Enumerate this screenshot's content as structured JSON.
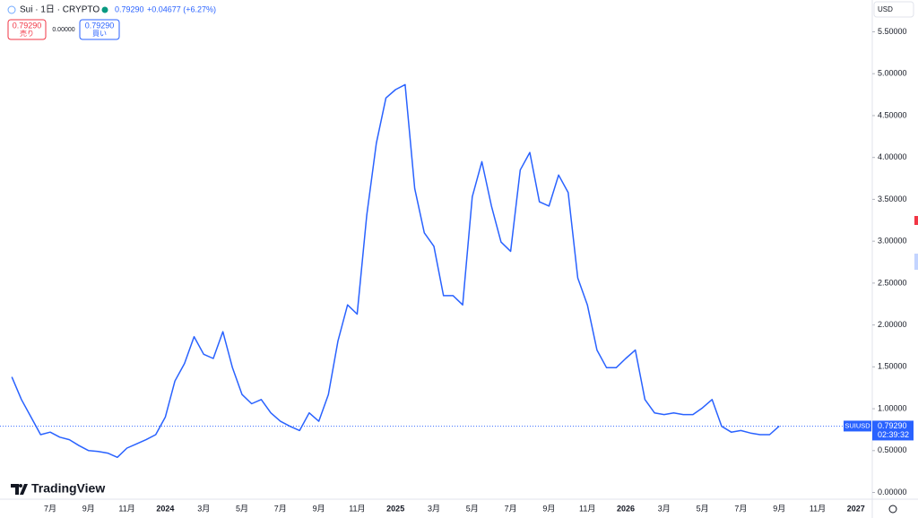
{
  "header": {
    "symbol": "Sui · 1日 · CRYPTO",
    "price": "0.79290",
    "change": "+0.04677 (+6.27%)"
  },
  "trade": {
    "sell_price": "0.79290",
    "sell_label": "売り",
    "spread": "0.00000",
    "buy_price": "0.79290",
    "buy_label": "買い"
  },
  "currency": "USD",
  "countdown": "02:39:32",
  "logo": "TradingView",
  "chart_data": {
    "type": "line",
    "categories": [
      null,
      null,
      null,
      null,
      "7月",
      null,
      null,
      null,
      "9月",
      null,
      null,
      null,
      "11月",
      null,
      null,
      null,
      "2024",
      null,
      null,
      null,
      "3月",
      null,
      null,
      null,
      "5月",
      null,
      null,
      null,
      "7月",
      null,
      null,
      null,
      "9月",
      null,
      null,
      null,
      "11月",
      null,
      null,
      null,
      "2025",
      null,
      null,
      null,
      "3月",
      null,
      null,
      null,
      "5月",
      null,
      null,
      null,
      "7月",
      null,
      null,
      null,
      "9月",
      null,
      null,
      null,
      "11月",
      null,
      null,
      null,
      "2026",
      null,
      null,
      null,
      "3月",
      null,
      null,
      null,
      "5月",
      null,
      null,
      null,
      "7月",
      null,
      null,
      null,
      "9月",
      null,
      null,
      null,
      "11月",
      null,
      null,
      null,
      "2027"
    ],
    "series": [
      {
        "name": "SUIUSD",
        "color": "#2962ff",
        "values": [
          1.38,
          1.11,
          0.9,
          0.69,
          0.72,
          0.66,
          0.63,
          0.56,
          0.5,
          0.49,
          0.47,
          0.42,
          0.53,
          0.58,
          0.63,
          0.69,
          0.9,
          1.33,
          1.54,
          1.86,
          1.65,
          1.6,
          1.92,
          1.49,
          1.17,
          1.06,
          1.11,
          0.95,
          0.85,
          0.79,
          0.74,
          0.95,
          0.85,
          1.17,
          1.81,
          2.24,
          2.13,
          3.31,
          4.17,
          4.71,
          4.81,
          4.87,
          3.63,
          3.1,
          2.94,
          2.35,
          2.35,
          2.24,
          3.53,
          3.95,
          3.42,
          2.99,
          2.88,
          3.85,
          4.06,
          3.47,
          3.42,
          3.79,
          3.58,
          2.56,
          2.24,
          1.7,
          1.49,
          1.49,
          1.6,
          1.7,
          1.11,
          0.95,
          0.93,
          0.95,
          0.93,
          0.93,
          1.01,
          1.11,
          0.79,
          0.72,
          0.74,
          0.71,
          0.69,
          0.69,
          0.7929,
          null,
          null,
          null,
          null,
          null,
          null,
          null,
          null
        ],
        "value_labels": [
          null,
          null,
          null,
          null,
          null,
          null,
          null,
          null,
          null,
          null,
          null,
          null,
          null,
          null,
          null,
          null,
          null,
          null,
          null,
          null,
          null,
          null,
          null,
          null,
          null,
          null,
          null,
          null,
          null,
          null,
          null,
          null,
          null,
          null,
          null,
          null,
          null,
          null,
          null,
          null,
          null,
          null,
          null,
          null,
          null,
          null,
          null,
          null,
          null,
          null,
          null,
          null,
          null,
          null,
          null,
          null,
          null,
          null,
          null,
          null,
          null,
          null,
          null,
          null,
          null,
          null,
          null,
          null,
          null,
          null,
          null,
          null,
          null,
          null,
          null,
          null,
          null,
          null,
          null,
          null,
          "0.79290",
          null,
          null,
          null,
          null,
          null,
          null,
          null,
          null
        ]
      }
    ],
    "ylim": [
      -0.08,
      5.88
    ],
    "yticks": [
      {
        "value": 0,
        "label": "0.00000"
      },
      {
        "value": 0.5,
        "label": "0.50000"
      },
      {
        "value": 1,
        "label": "1.00000"
      },
      {
        "value": 1.5,
        "label": "1.50000"
      },
      {
        "value": 2,
        "label": "2.00000"
      },
      {
        "value": 2.5,
        "label": "2.50000"
      },
      {
        "value": 3,
        "label": "3.00000"
      },
      {
        "value": 3.5,
        "label": "3.50000"
      },
      {
        "value": 4,
        "label": "4.00000"
      },
      {
        "value": 4.5,
        "label": "4.50000"
      },
      {
        "value": 5,
        "label": "5.00000"
      },
      {
        "value": 5.5,
        "label": "5.50000"
      }
    ],
    "grid": false
  }
}
